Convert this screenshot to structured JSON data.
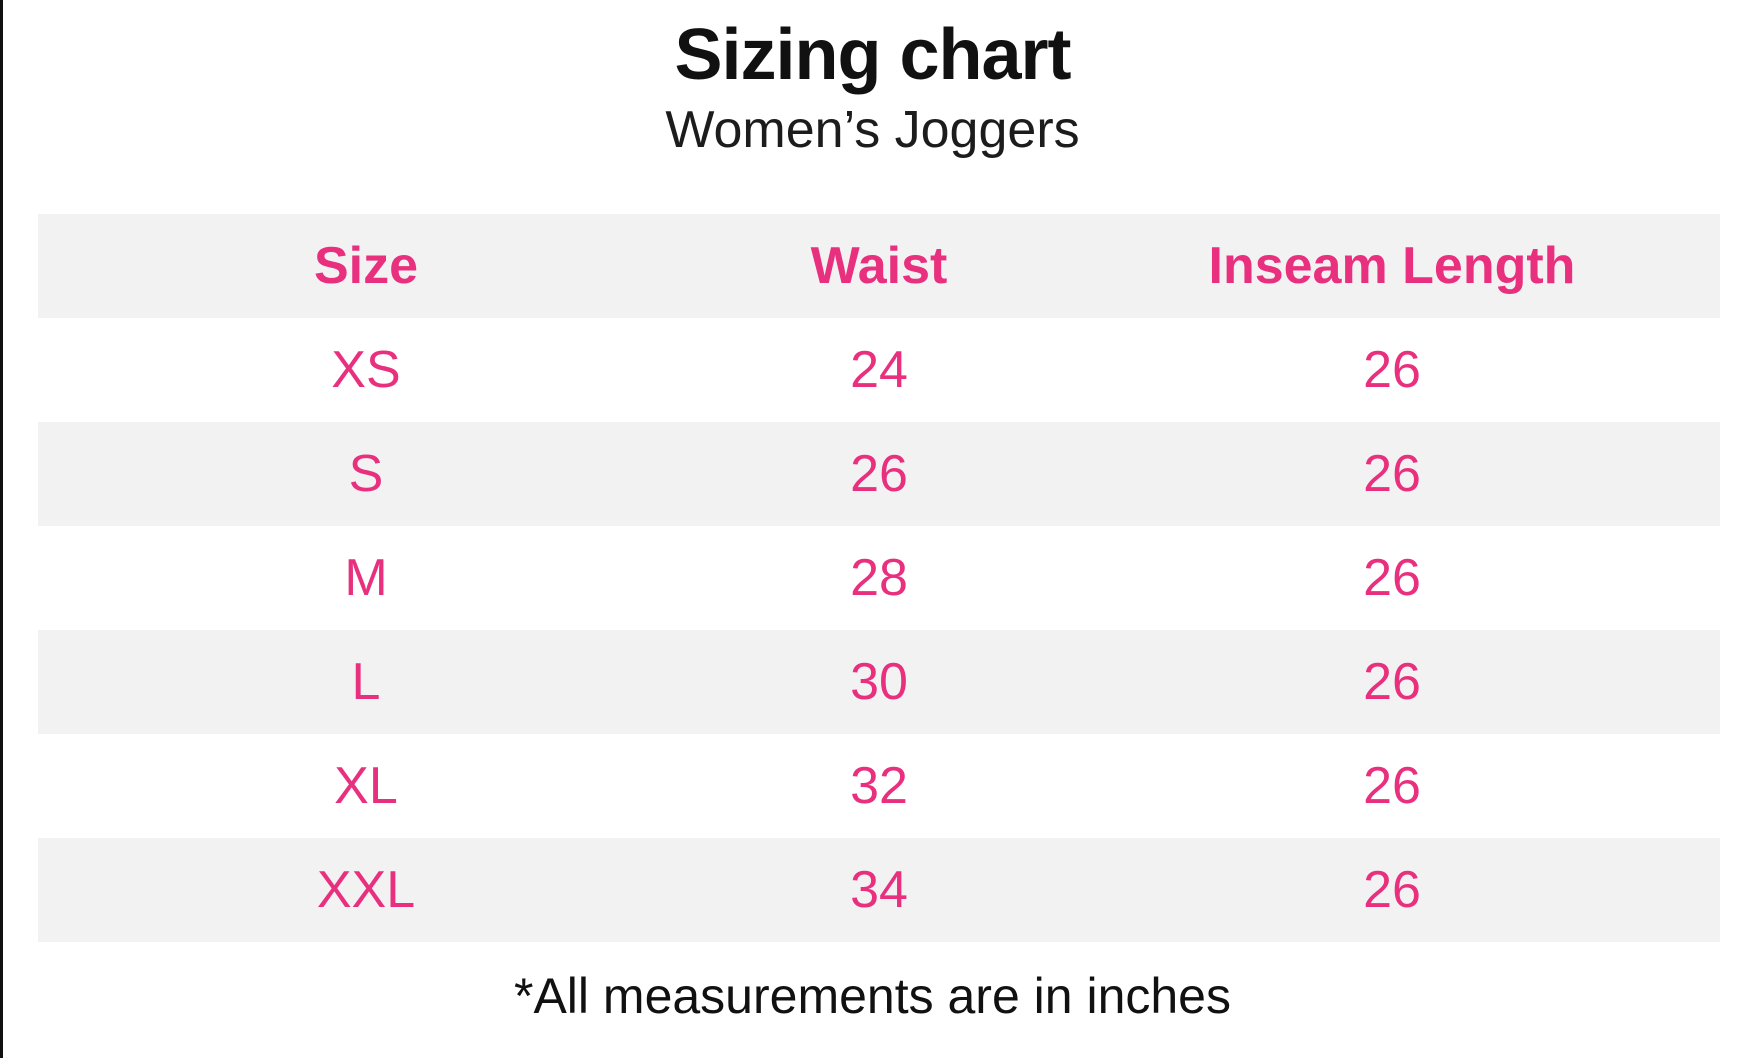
{
  "page": {
    "title": "Sizing chart",
    "subtitle": "Women’s Joggers",
    "footnote": "*All measurements are in inches"
  },
  "colors": {
    "accent_pink": "#e8307e",
    "row_stripe_gray": "#f2f2f3",
    "text_black": "#111111"
  },
  "chart_data": {
    "type": "table",
    "title": "Sizing chart",
    "subtitle": "Women’s Joggers",
    "columns": [
      "Size",
      "Waist",
      "Inseam Length"
    ],
    "rows": [
      {
        "size": "XS",
        "waist": "24",
        "inseam_length": "26"
      },
      {
        "size": "S",
        "waist": "26",
        "inseam_length": "26"
      },
      {
        "size": "M",
        "waist": "28",
        "inseam_length": "26"
      },
      {
        "size": "L",
        "waist": "30",
        "inseam_length": "26"
      },
      {
        "size": "XL",
        "waist": "32",
        "inseam_length": "26"
      },
      {
        "size": "XXL",
        "waist": "34",
        "inseam_length": "26"
      }
    ],
    "units": "inches",
    "footnote": "*All measurements are in inches",
    "layout": {
      "striped_rows": true,
      "header_background": "#f2f2f3",
      "text_alignment": "center"
    }
  }
}
